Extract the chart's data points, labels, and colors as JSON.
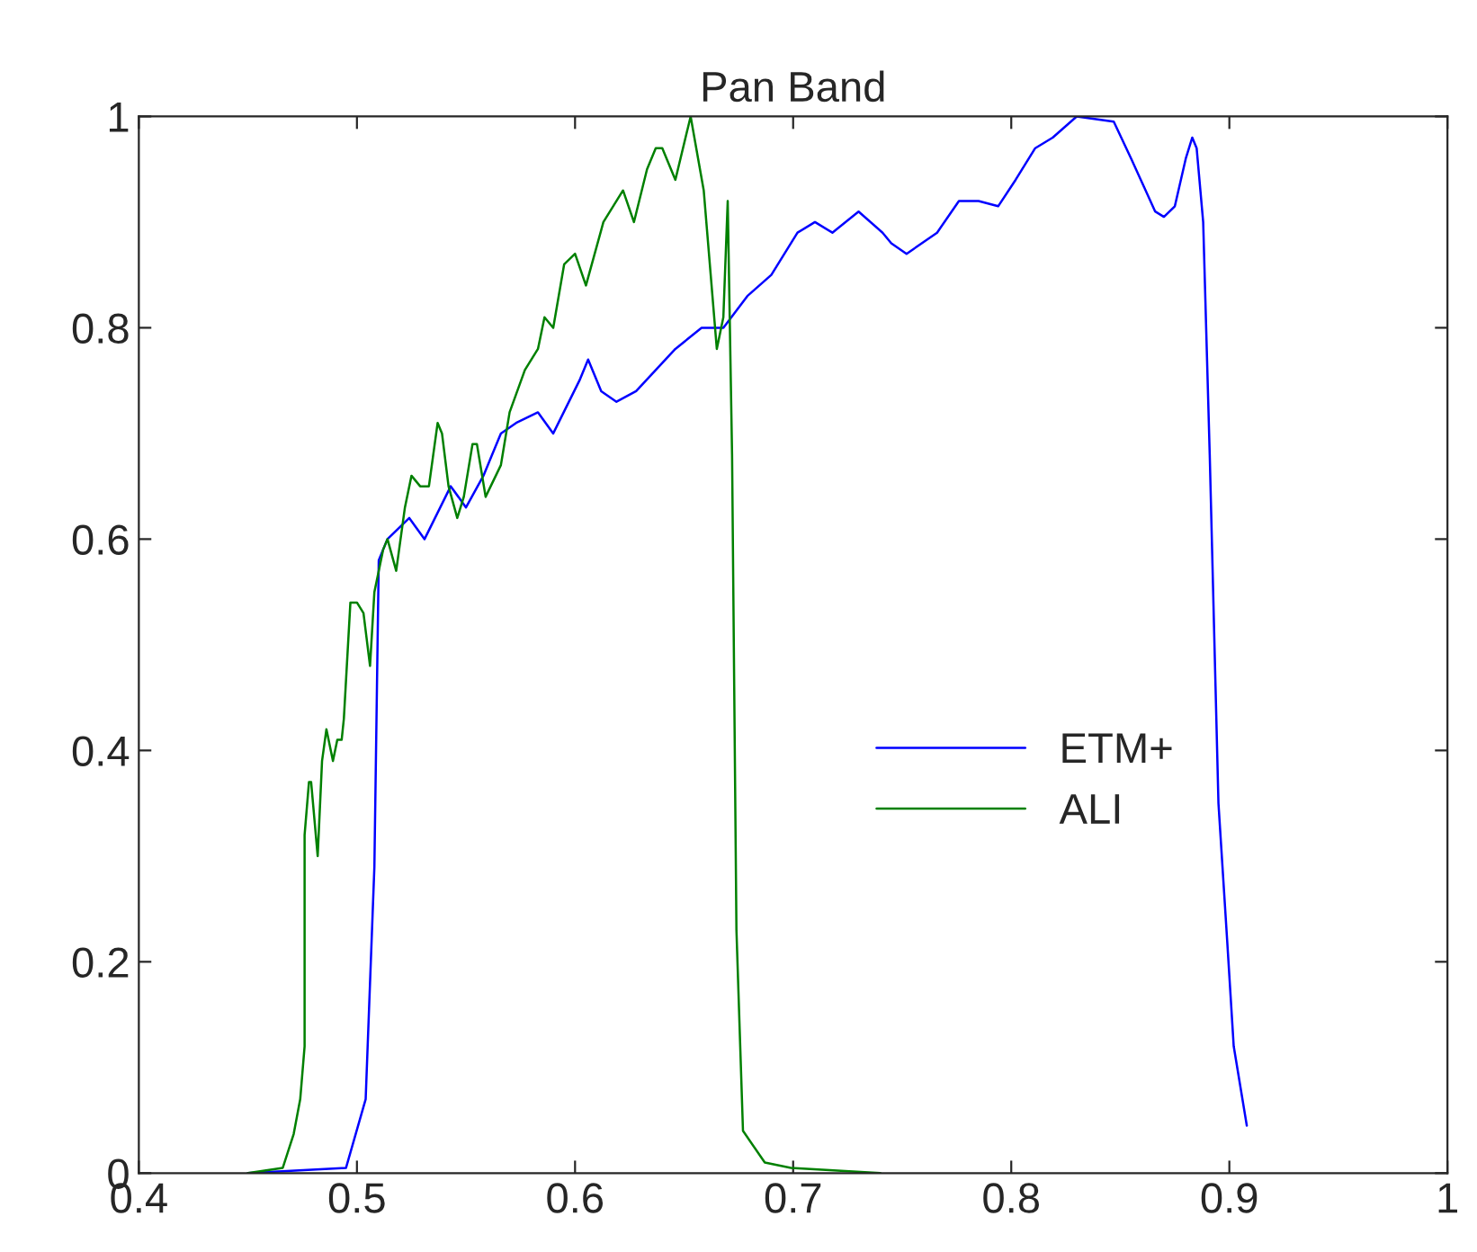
{
  "chart_data": {
    "type": "line",
    "title": "Pan Band",
    "xlim": [
      0.4,
      1
    ],
    "xticks": [
      0.4,
      0.5,
      0.6,
      0.7,
      0.8,
      0.9,
      1
    ],
    "ylim": [
      0,
      1
    ],
    "yticks": [
      0,
      0.2,
      0.4,
      0.6,
      0.8,
      1
    ],
    "grid": false,
    "legend": "right",
    "series": [
      {
        "name": "ETM+",
        "color": "#0000ff",
        "x": [
          0.45,
          0.495,
          0.504,
          0.508,
          0.51,
          0.514,
          0.524,
          0.531,
          0.543,
          0.55,
          0.558,
          0.566,
          0.573,
          0.583,
          0.59,
          0.602,
          0.606,
          0.612,
          0.619,
          0.628,
          0.637,
          0.646,
          0.658,
          0.668,
          0.679,
          0.69,
          0.702,
          0.71,
          0.718,
          0.73,
          0.741,
          0.745,
          0.752,
          0.766,
          0.776,
          0.785,
          0.794,
          0.802,
          0.811,
          0.819,
          0.83,
          0.847,
          0.855,
          0.866,
          0.87,
          0.875,
          0.88,
          0.883,
          0.885,
          0.888,
          0.891,
          0.895,
          0.899,
          0.902,
          0.908
        ],
        "values": [
          0,
          0.005,
          0.07,
          0.29,
          0.58,
          0.6,
          0.62,
          0.6,
          0.65,
          0.63,
          0.66,
          0.7,
          0.71,
          0.72,
          0.7,
          0.75,
          0.77,
          0.74,
          0.73,
          0.74,
          0.76,
          0.78,
          0.8,
          0.8,
          0.83,
          0.85,
          0.89,
          0.9,
          0.89,
          0.91,
          0.89,
          0.88,
          0.87,
          0.89,
          0.92,
          0.92,
          0.915,
          0.94,
          0.97,
          0.98,
          1.0,
          0.995,
          0.96,
          0.91,
          0.905,
          0.915,
          0.96,
          0.98,
          0.97,
          0.9,
          0.68,
          0.35,
          0.22,
          0.12,
          0.045
        ]
      },
      {
        "name": "ALI",
        "color": "#008000",
        "x": [
          0.45,
          0.466,
          0.471,
          0.474,
          0.476,
          0.476,
          0.478,
          0.479,
          0.482,
          0.484,
          0.486,
          0.489,
          0.491,
          0.493,
          0.494,
          0.497,
          0.5,
          0.503,
          0.506,
          0.508,
          0.512,
          0.514,
          0.518,
          0.522,
          0.525,
          0.529,
          0.533,
          0.537,
          0.539,
          0.542,
          0.546,
          0.549,
          0.553,
          0.555,
          0.559,
          0.566,
          0.57,
          0.577,
          0.583,
          0.586,
          0.59,
          0.595,
          0.6,
          0.605,
          0.613,
          0.622,
          0.627,
          0.633,
          0.637,
          0.64,
          0.646,
          0.653,
          0.659,
          0.665,
          0.668,
          0.67,
          0.672,
          0.674,
          0.677,
          0.687,
          0.699,
          0.74
        ],
        "values": [
          0,
          0.005,
          0.037,
          0.07,
          0.12,
          0.32,
          0.37,
          0.37,
          0.3,
          0.39,
          0.42,
          0.39,
          0.41,
          0.41,
          0.43,
          0.54,
          0.54,
          0.53,
          0.48,
          0.55,
          0.59,
          0.6,
          0.57,
          0.63,
          0.66,
          0.65,
          0.65,
          0.71,
          0.7,
          0.65,
          0.62,
          0.64,
          0.69,
          0.69,
          0.64,
          0.67,
          0.72,
          0.76,
          0.78,
          0.81,
          0.8,
          0.86,
          0.87,
          0.84,
          0.9,
          0.93,
          0.9,
          0.95,
          0.97,
          0.97,
          0.94,
          1.0,
          0.93,
          0.78,
          0.81,
          0.92,
          0.68,
          0.23,
          0.04,
          0.01,
          0.005,
          0
        ]
      }
    ]
  }
}
